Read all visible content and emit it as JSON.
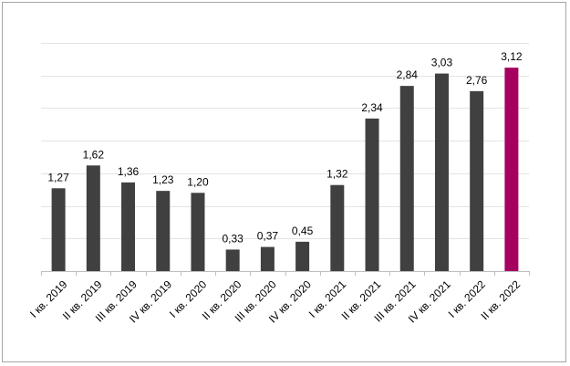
{
  "chart_data": {
    "type": "bar",
    "categories": [
      "I кв. 2019",
      "II кв. 2019",
      "III кв. 2019",
      "IV кв. 2019",
      "I кв. 2020",
      "II кв. 2020",
      "III кв. 2020",
      "IV кв. 2020",
      "I кв. 2021",
      "II кв. 2021",
      "III кв. 2021",
      "IV кв. 2021",
      "I кв. 2022",
      "II кв. 2022"
    ],
    "values": [
      1.27,
      1.62,
      1.36,
      1.23,
      1.2,
      0.33,
      0.37,
      0.45,
      1.32,
      2.34,
      2.84,
      3.03,
      2.76,
      3.12
    ],
    "value_labels": [
      "1,27",
      "1,62",
      "1,36",
      "1,23",
      "1,20",
      "0,33",
      "0,37",
      "0,45",
      "1,32",
      "2,34",
      "2,84",
      "3,03",
      "2,76",
      "3,12"
    ],
    "ylim": [
      0,
      3.5
    ],
    "grid": true,
    "legend": "none",
    "colors": {
      "bar": "#404040",
      "highlight": "#a50060",
      "grid": "#e3e3e3",
      "axis": "#bfbfbf"
    },
    "highlight_index": 13,
    "title": "",
    "xlabel": "",
    "ylabel": ""
  }
}
